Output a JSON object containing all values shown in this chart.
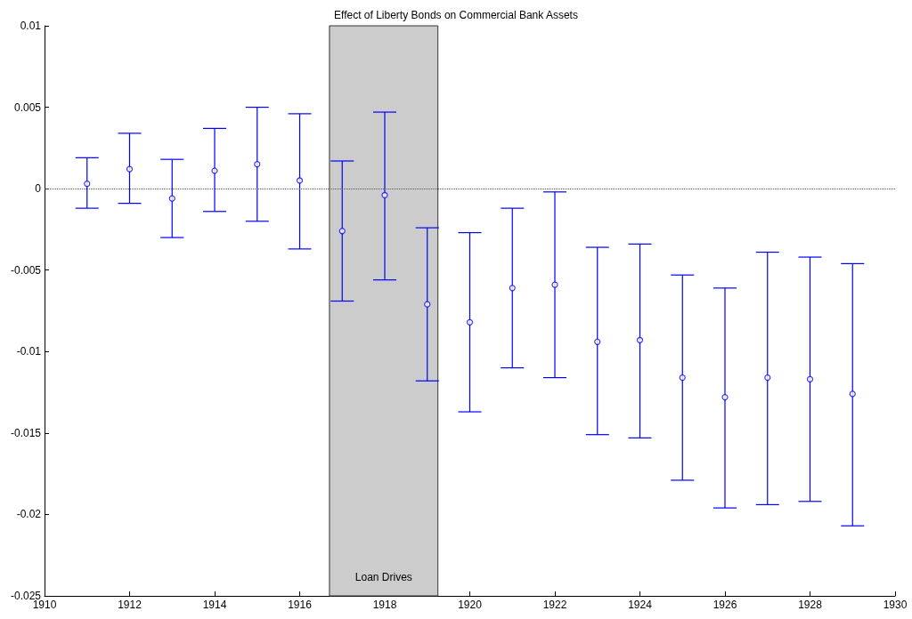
{
  "chart_data": {
    "type": "scatter",
    "title": "Effect of Liberty Bonds on Commercial Bank Assets",
    "x": [
      1911,
      1912,
      1913,
      1914,
      1915,
      1916,
      1917,
      1918,
      1919,
      1920,
      1921,
      1922,
      1923,
      1924,
      1925,
      1926,
      1927,
      1928,
      1929
    ],
    "series": [
      {
        "color": "#0000ff",
        "values": [
          0.0003,
          0.0012,
          -0.0006,
          0.0011,
          0.0015,
          0.0005,
          -0.0026,
          -0.0004,
          -0.0071,
          -0.0082,
          -0.0061,
          -0.0059,
          -0.0094,
          -0.0093,
          -0.0116,
          -0.0128,
          -0.0116,
          -0.0117,
          -0.0126
        ],
        "errors": [
          [
            -0.0012,
            0.0019
          ],
          [
            -0.0009,
            0.0034
          ],
          [
            -0.003,
            0.0018
          ],
          [
            -0.0014,
            0.0037
          ],
          [
            -0.002,
            0.005
          ],
          [
            -0.0037,
            0.0046
          ],
          [
            -0.0069,
            0.0017
          ],
          [
            -0.0056,
            0.0047
          ],
          [
            -0.0118,
            -0.0024
          ],
          [
            -0.0137,
            -0.0027
          ],
          [
            -0.011,
            -0.0012
          ],
          [
            -0.0116,
            -0.0002
          ],
          [
            -0.0151,
            -0.0036
          ],
          [
            -0.0153,
            -0.0034
          ],
          [
            -0.0179,
            -0.0053
          ],
          [
            -0.0196,
            -0.0061
          ],
          [
            -0.0194,
            -0.0039
          ],
          [
            -0.0192,
            -0.0042
          ],
          [
            -0.0207,
            -0.0046
          ]
        ]
      }
    ],
    "xlim": [
      1910,
      1930
    ],
    "xticks": [
      1910,
      1912,
      1914,
      1916,
      1918,
      1920,
      1922,
      1924,
      1926,
      1928,
      1930
    ],
    "ylim": [
      -0.025,
      0.01
    ],
    "yticks": [
      -0.025,
      -0.02,
      -0.015,
      -0.01,
      -0.005,
      0,
      0.005,
      0.01
    ],
    "marker": "circle",
    "grid": false,
    "ref_lines": [
      {
        "axis": "y",
        "value": 0,
        "label": null,
        "color": "#555555",
        "line_style": "dotted"
      }
    ],
    "bands": [
      {
        "axis": "x",
        "from": 1916.7,
        "to": 1919.25,
        "label": "Loan Drives",
        "color": "#cccccc"
      }
    ]
  }
}
